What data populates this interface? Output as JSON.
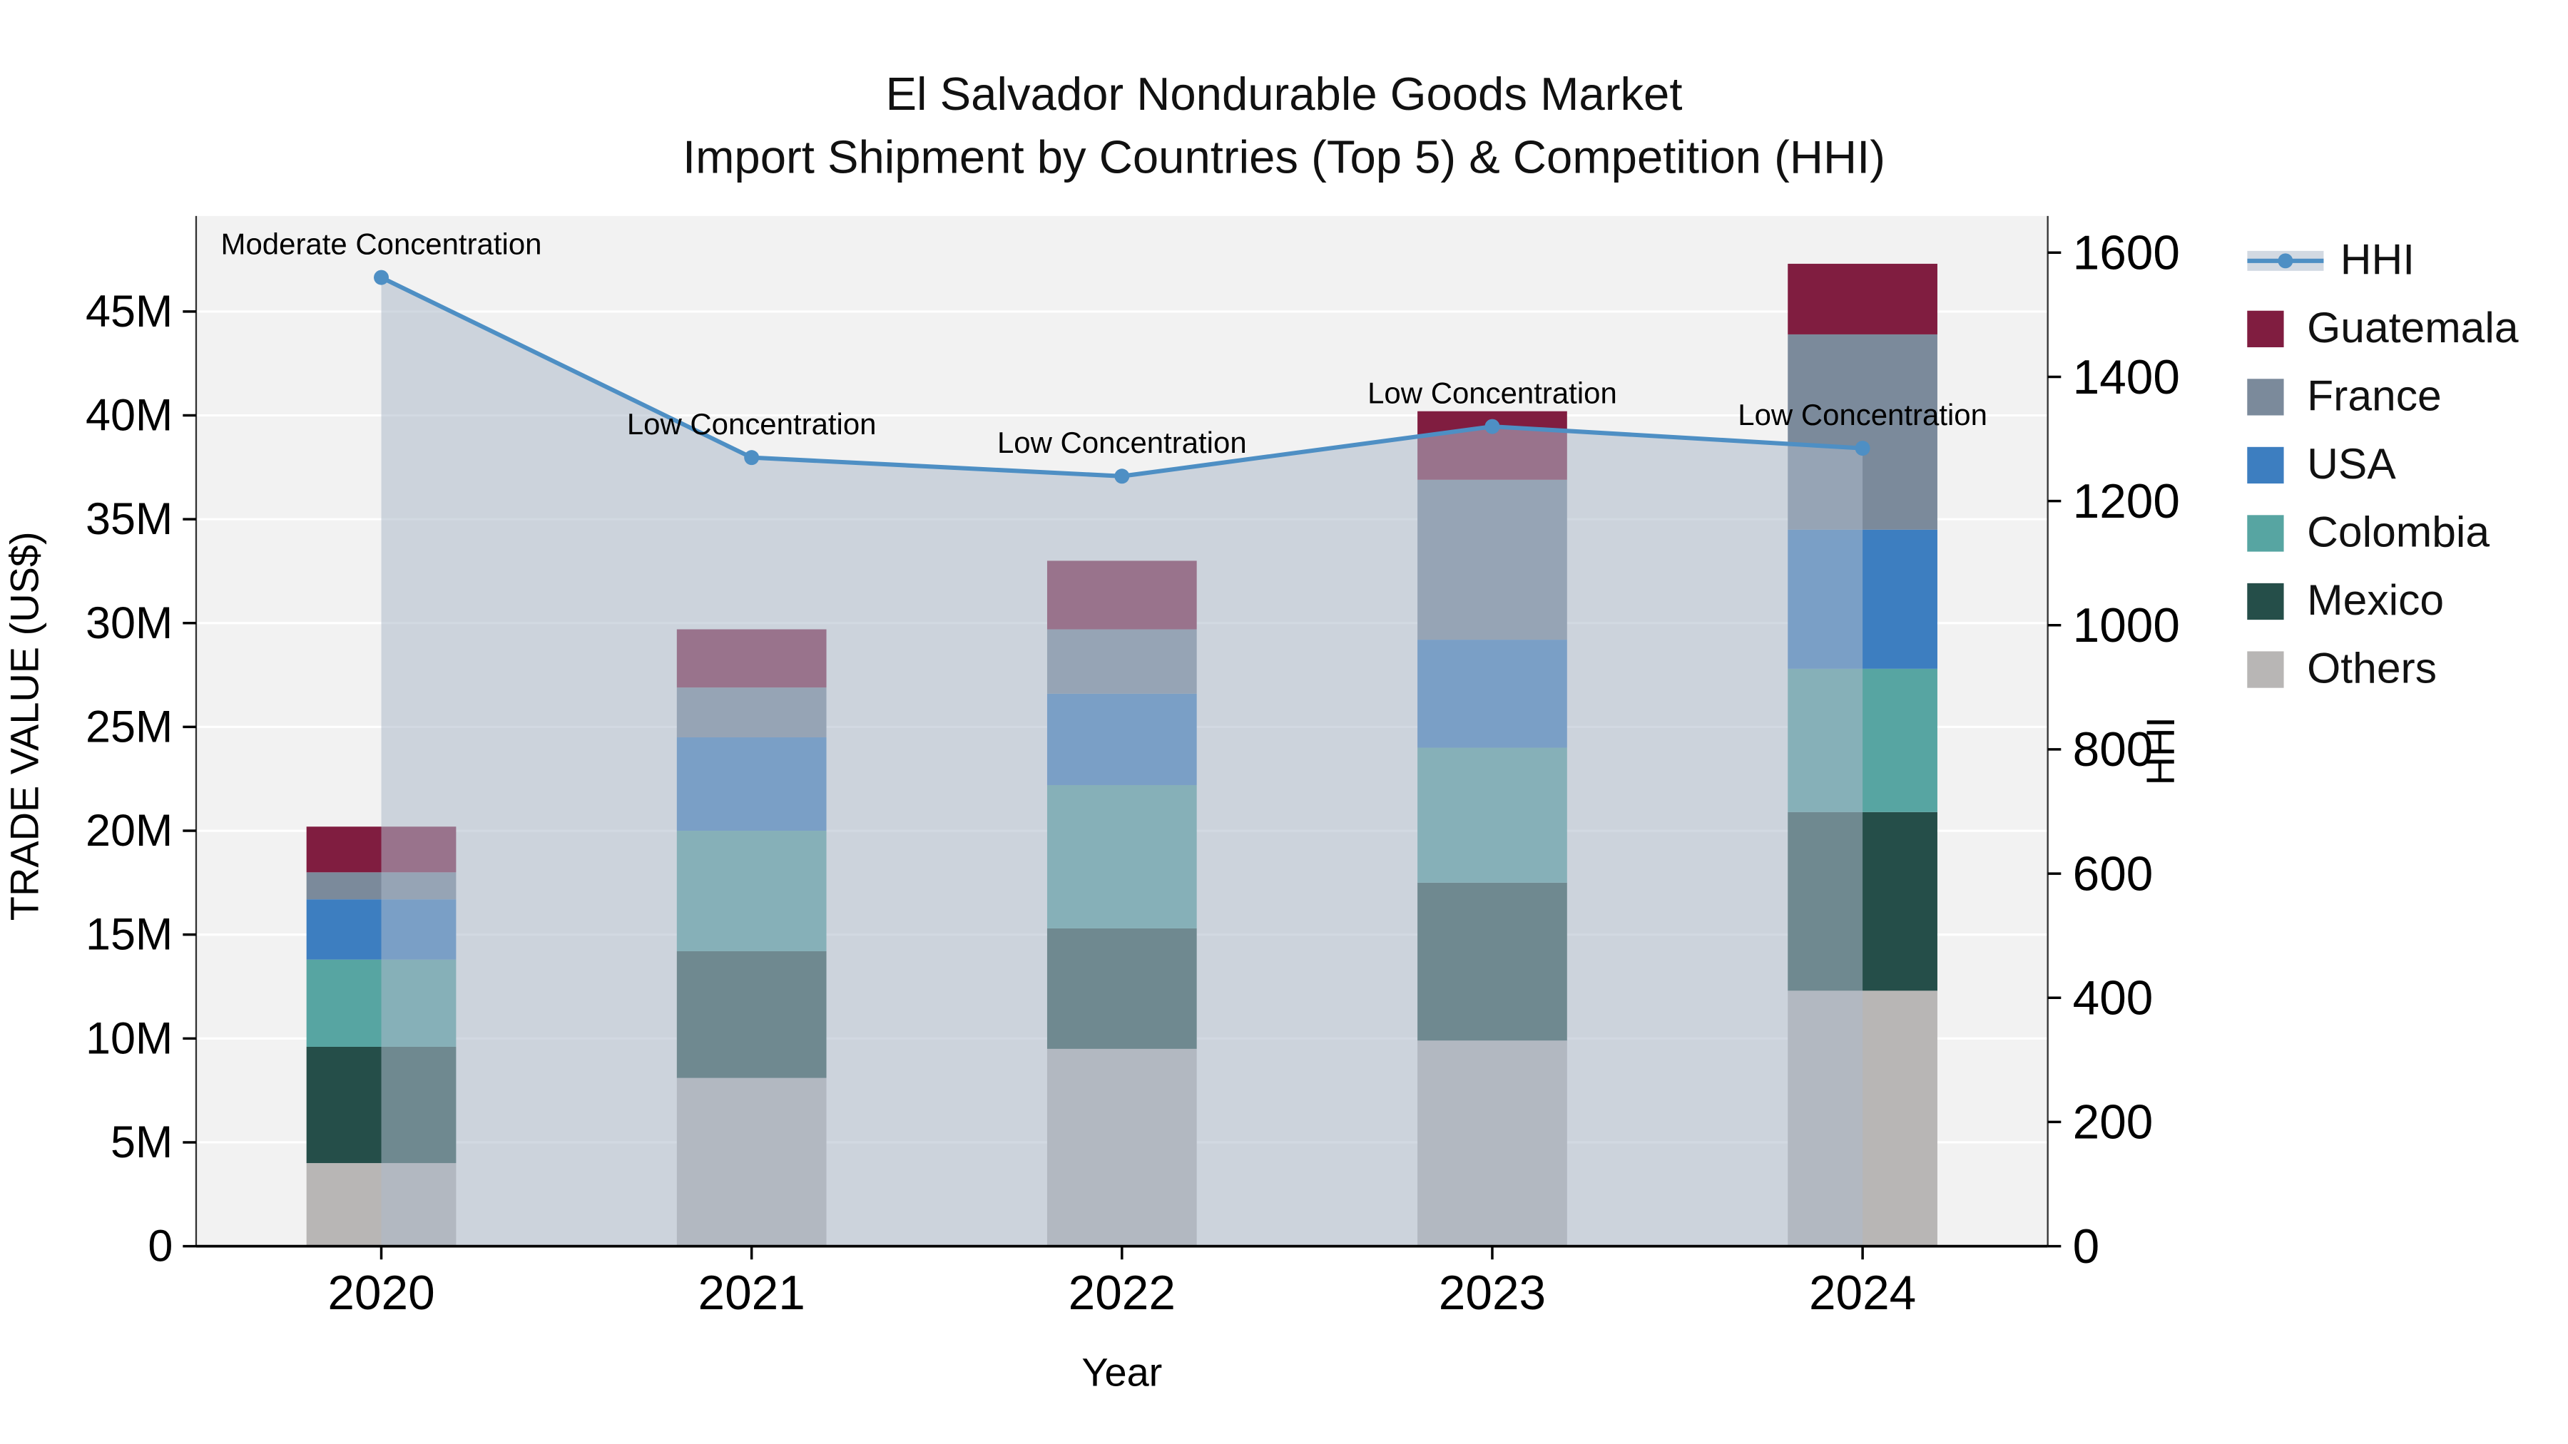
{
  "title": {
    "line1": "El Salvador Nondurable Goods Market",
    "line2": "Import Shipment by Countries (Top 5) & Competition (HHI)"
  },
  "axes": {
    "left_label": "TRADE VALUE (US$)",
    "right_label": "HHI",
    "x_label": "Year"
  },
  "legend": {
    "items": [
      {
        "label": "HHI",
        "marker": "line",
        "color": "#4e8fc4",
        "band": "rgba(173,186,202,0.55)"
      },
      {
        "label": "Guatemala",
        "marker": "square",
        "color": "#801d40"
      },
      {
        "label": "France",
        "marker": "square",
        "color": "#7b8a9b"
      },
      {
        "label": "USA",
        "marker": "square",
        "color": "#3d7ec0"
      },
      {
        "label": "Colombia",
        "marker": "square",
        "color": "#57a5a2"
      },
      {
        "label": "Mexico",
        "marker": "square",
        "color": "#254e49"
      },
      {
        "label": "Others",
        "marker": "square",
        "color": "#b8b6b5"
      }
    ]
  },
  "chart_data": {
    "type": "bar",
    "subtype": "stacked-bars-with-line-area-overlay",
    "categories": [
      "2020",
      "2021",
      "2022",
      "2023",
      "2024"
    ],
    "series": [
      {
        "name": "Others",
        "color": "#b8b6b5",
        "values": [
          4.0,
          8.1,
          9.5,
          9.9,
          12.3
        ]
      },
      {
        "name": "Mexico",
        "color": "#254e49",
        "values": [
          5.6,
          6.1,
          5.8,
          7.6,
          8.6
        ]
      },
      {
        "name": "Colombia",
        "color": "#57a5a2",
        "values": [
          4.2,
          5.8,
          6.9,
          6.5,
          6.9
        ]
      },
      {
        "name": "USA",
        "color": "#3d7ec0",
        "values": [
          2.9,
          4.5,
          4.4,
          5.2,
          6.7
        ]
      },
      {
        "name": "France",
        "color": "#7b8a9b",
        "values": [
          1.3,
          2.4,
          3.1,
          7.7,
          9.4
        ]
      },
      {
        "name": "Guatemala",
        "color": "#801d40",
        "values": [
          2.2,
          2.8,
          3.3,
          3.3,
          3.4
        ]
      }
    ],
    "bar_totals_M": [
      20.2,
      29.7,
      33.0,
      40.2,
      47.3
    ],
    "line": {
      "name": "HHI",
      "color": "#4e8fc4",
      "area_fill": "rgba(173,186,202,0.55)",
      "values": [
        1560,
        1270,
        1240,
        1320,
        1285
      ]
    },
    "annotations": [
      "Moderate Concentration",
      "Low Concentration",
      "Low Concentration",
      "Low Concentration",
      "Low Concentration"
    ],
    "title": "El Salvador Nondurable Goods Market — Import Shipment by Countries (Top 5) & Competition (HHI)",
    "xlabel": "Year",
    "ylabel": "TRADE VALUE (US$)",
    "ylabel_right": "HHI",
    "left_axis": {
      "unit": "M",
      "tick_values": [
        0,
        5,
        10,
        15,
        20,
        25,
        30,
        35,
        40,
        45
      ],
      "tick_labels": [
        "0",
        "5M",
        "10M",
        "15M",
        "20M",
        "25M",
        "30M",
        "35M",
        "40M",
        "45M"
      ],
      "range": [
        0,
        49.6
      ]
    },
    "right_axis": {
      "tick_values": [
        0,
        200,
        400,
        600,
        800,
        1000,
        1200,
        1400,
        1600
      ],
      "tick_labels": [
        "0",
        "200",
        "400",
        "600",
        "800",
        "1000",
        "1200",
        "1400",
        "1600"
      ],
      "range": [
        0,
        1659
      ]
    },
    "plot_background": "#f2f2f2",
    "grid": "on",
    "grid_color": "#ffffff",
    "legend_position": "right-outside"
  }
}
